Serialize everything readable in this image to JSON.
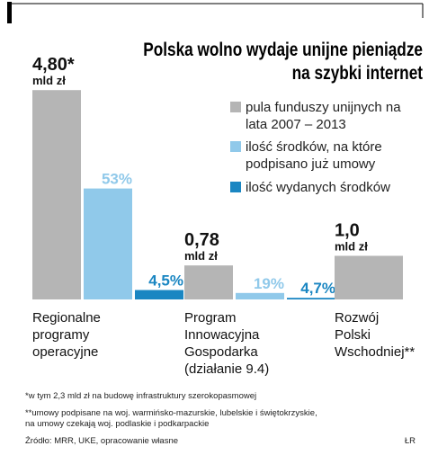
{
  "chart_data": {
    "type": "bar",
    "title": [
      "Polska wolno wydaje unijne pieniądze",
      "na szybki internet"
    ],
    "unit": "mld zł",
    "categories": [
      [
        "Regionalne",
        "programy",
        "operacyjne"
      ],
      [
        "Program",
        "Innowacyjna",
        "Gospodarka",
        "(działanie 9.4)"
      ],
      [
        "Rozwój",
        "Polski",
        "Wschodniej**"
      ]
    ],
    "series": [
      {
        "name": "pula funduszy unijnych na lata 2007 – 2013",
        "color": "#b5b5b5",
        "values": [
          4.8,
          0.78,
          1.0
        ],
        "value_labels": [
          "4,80*",
          "0,78",
          "1,0"
        ]
      },
      {
        "name": "ilość środków, na które podpisano już umowy",
        "color": "#90c9ea",
        "values": [
          53,
          19,
          null
        ],
        "value_labels": [
          "53%",
          "19%",
          null
        ]
      },
      {
        "name": "ilość wydanych środków",
        "color": "#1a86c2",
        "values": [
          4.5,
          4.7,
          null
        ],
        "value_labels": [
          "4,5%",
          "4,7%",
          null
        ]
      }
    ]
  },
  "footnotes": [
    "*w tym 2,3 mld zł na budowę infrastruktury szerokopasmowej",
    [
      "**umowy podpisane na woj. warmińsko-mazurskie, lubelskie i świętokrzyskie,",
      "na umowy czekają woj. podlaskie i podkarpackie"
    ]
  ],
  "source": "Źródło: MRR, UKE, opracowanie własne",
  "credit": "ŁR"
}
